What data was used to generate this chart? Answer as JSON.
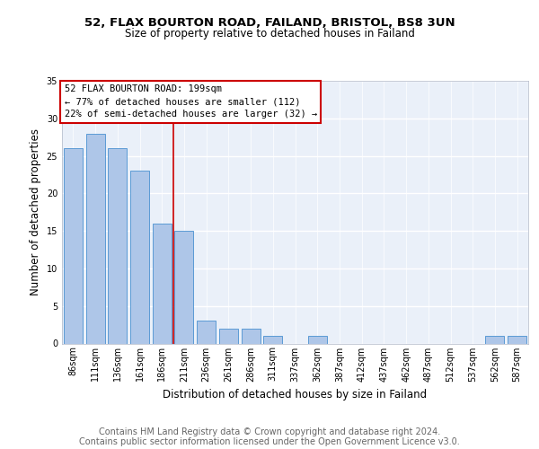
{
  "title_line1": "52, FLAX BOURTON ROAD, FAILAND, BRISTOL, BS8 3UN",
  "title_line2": "Size of property relative to detached houses in Failand",
  "xlabel": "Distribution of detached houses by size in Failand",
  "ylabel": "Number of detached properties",
  "bin_labels": [
    "86sqm",
    "111sqm",
    "136sqm",
    "161sqm",
    "186sqm",
    "211sqm",
    "236sqm",
    "261sqm",
    "286sqm",
    "311sqm",
    "337sqm",
    "362sqm",
    "387sqm",
    "412sqm",
    "437sqm",
    "462sqm",
    "487sqm",
    "512sqm",
    "537sqm",
    "562sqm",
    "587sqm"
  ],
  "bar_values": [
    26,
    28,
    26,
    23,
    16,
    15,
    3,
    2,
    2,
    1,
    0,
    1,
    0,
    0,
    0,
    0,
    0,
    0,
    0,
    1,
    1
  ],
  "bar_color": "#aec6e8",
  "bar_edge_color": "#5b9bd5",
  "vline_x": 4.5,
  "annotation_title": "52 FLAX BOURTON ROAD: 199sqm",
  "annotation_line2": "← 77% of detached houses are smaller (112)",
  "annotation_line3": "22% of semi-detached houses are larger (32) →",
  "annotation_box_color": "#ffffff",
  "annotation_box_edge": "#cc0000",
  "vline_color": "#cc0000",
  "ylim": [
    0,
    35
  ],
  "yticks": [
    0,
    5,
    10,
    15,
    20,
    25,
    30,
    35
  ],
  "footer_line1": "Contains HM Land Registry data © Crown copyright and database right 2024.",
  "footer_line2": "Contains public sector information licensed under the Open Government Licence v3.0.",
  "background_color": "#eaf0f9",
  "fig_background": "#ffffff",
  "grid_color": "#ffffff",
  "title_fontsize": 9.5,
  "subtitle_fontsize": 8.5,
  "axis_label_fontsize": 8.5,
  "tick_fontsize": 7,
  "annotation_fontsize": 7.5,
  "footer_fontsize": 7
}
